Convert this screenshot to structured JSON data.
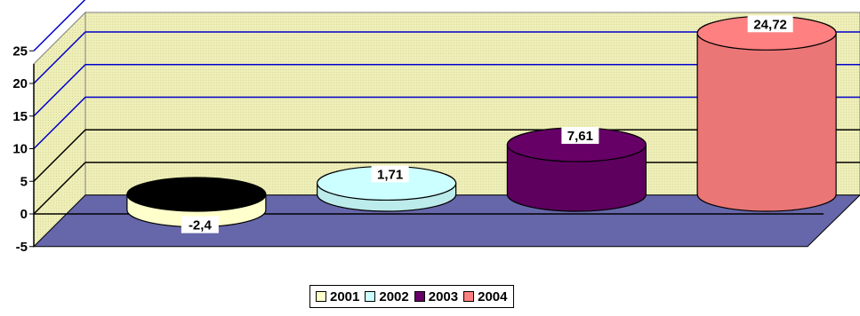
{
  "chart_data": {
    "type": "bar",
    "title": "",
    "xlabel": "",
    "ylabel": "",
    "ylim": [
      -5,
      25
    ],
    "yticks": [
      25,
      20,
      15,
      10,
      5,
      0,
      -5
    ],
    "grid": true,
    "legend_position": "bottom",
    "series": [
      {
        "name": "2001",
        "value": -2.4,
        "label": "-2,4",
        "color": "#ffffcc"
      },
      {
        "name": "2002",
        "value": 1.71,
        "label": "1,71",
        "color": "#ccffff"
      },
      {
        "name": "2003",
        "value": 7.61,
        "label": "7,61",
        "color": "#660066"
      },
      {
        "name": "2004",
        "value": 24.72,
        "label": "24,72",
        "color": "#ff8080"
      }
    ],
    "colors": {
      "wall": "#eeeeb8",
      "floor": "#6666aa",
      "gridline": "#0000cc",
      "topFaces": {
        "2001": "#000000",
        "2002": "#ccffff",
        "2003": "#660066",
        "2004": "#ff8080"
      }
    }
  }
}
